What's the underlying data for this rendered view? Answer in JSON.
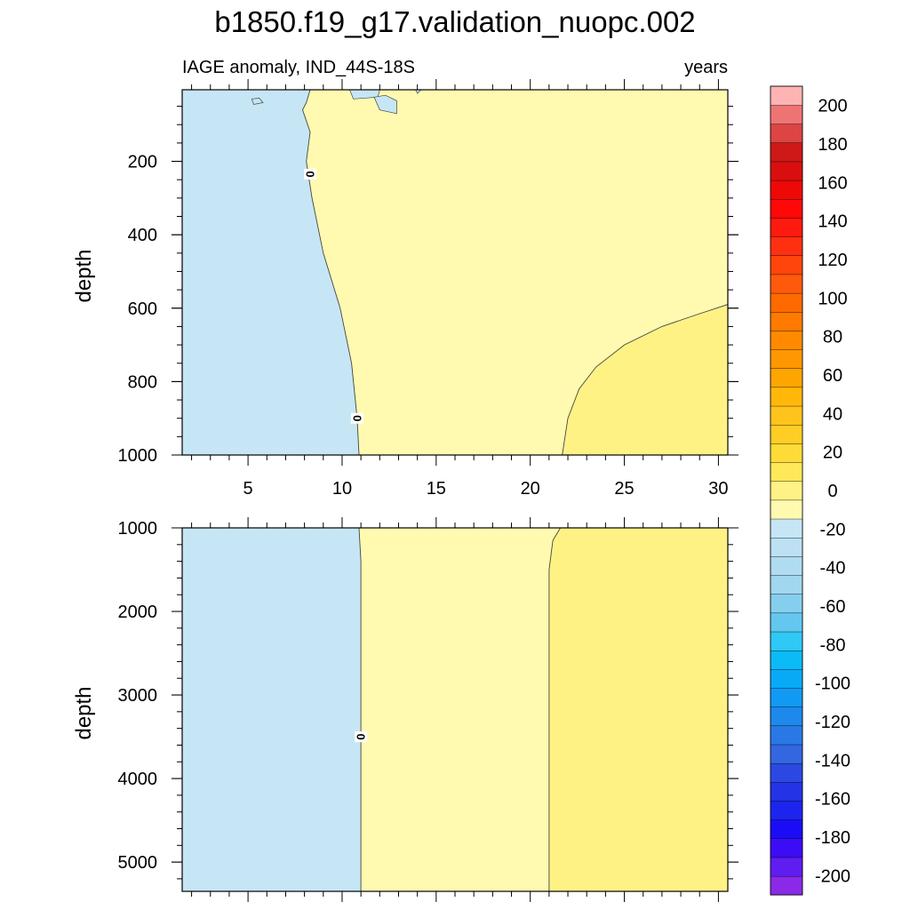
{
  "title": "b1850.f19_g17.validation_nuopc.002",
  "subtitle_left": "IAGE anomaly, IND_44S-18S",
  "subtitle_right": "years",
  "chart_data": [
    {
      "type": "heatmap",
      "panel": "upper",
      "ylabel": "depth",
      "xlim": [
        1.5,
        30.5
      ],
      "ylim": [
        1000,
        5
      ],
      "y_reversed": true,
      "xticks": [
        5,
        10,
        15,
        20,
        25,
        30
      ],
      "xtick_labels": [
        "5",
        "10",
        "15",
        "20",
        "25",
        "30"
      ],
      "yticks": [
        200,
        400,
        600,
        800,
        1000
      ],
      "ytick_labels": [
        "200",
        "400",
        "600",
        "800",
        "1000"
      ],
      "regions": [
        {
          "range": "-10 to 0",
          "color": "#c6e6f5",
          "description": "west of 0 contour"
        },
        {
          "range": "0 to 10",
          "color": "#fffab0",
          "description": "central"
        },
        {
          "range": "10 to 20",
          "color": "#fff285",
          "description": "south-east corner below ~600 m"
        }
      ],
      "contour_lines": [
        {
          "level": 0,
          "label": "0",
          "points": [
            [
              8.3,
              5
            ],
            [
              8.1,
              40
            ],
            [
              7.9,
              60
            ],
            [
              8.3,
              120
            ],
            [
              8.1,
              200
            ],
            [
              8.4,
              300
            ],
            [
              9.0,
              450
            ],
            [
              9.9,
              600
            ],
            [
              10.5,
              750
            ],
            [
              10.8,
              900
            ],
            [
              10.9,
              1000
            ]
          ]
        },
        {
          "level": 10,
          "label": "",
          "points": [
            [
              21.7,
              1000
            ],
            [
              22.0,
              900
            ],
            [
              22.6,
              820
            ],
            [
              23.5,
              760
            ],
            [
              25.0,
              700
            ],
            [
              27.0,
              650
            ],
            [
              29.0,
              615
            ],
            [
              30.5,
              590
            ]
          ]
        }
      ],
      "contour_labels": [
        {
          "text": "0",
          "x": 8.3,
          "y": 235
        },
        {
          "text": "0",
          "x": 10.8,
          "y": 900
        }
      ],
      "islands": [
        {
          "color": "#c6e6f5",
          "points": [
            [
              5.2,
              30
            ],
            [
              5.6,
              28
            ],
            [
              5.8,
              40
            ],
            [
              5.3,
              45
            ]
          ]
        },
        {
          "color": "#c6e6f5",
          "points": [
            [
              10.4,
              5
            ],
            [
              12.0,
              5
            ],
            [
              11.9,
              25
            ],
            [
              10.6,
              30
            ]
          ]
        },
        {
          "color": "#c6e6f5",
          "points": [
            [
              11.7,
              25
            ],
            [
              12.3,
              20
            ],
            [
              12.9,
              35
            ],
            [
              12.9,
              70
            ],
            [
              12.0,
              60
            ]
          ]
        },
        {
          "color": "#c6e6f5",
          "points": [
            [
              13.9,
              5
            ],
            [
              14.2,
              5
            ],
            [
              14.0,
              15
            ]
          ]
        }
      ]
    },
    {
      "type": "heatmap",
      "panel": "lower",
      "ylabel": "depth",
      "xlim": [
        1.5,
        30.5
      ],
      "ylim": [
        1000,
        5350
      ],
      "y_reversed": true,
      "xticks": [
        5,
        10,
        15,
        20,
        25,
        30
      ],
      "xtick_labels": [],
      "yticks": [
        1000,
        2000,
        3000,
        4000,
        5000
      ],
      "ytick_labels": [
        "1000",
        "2000",
        "3000",
        "4000",
        "5000"
      ],
      "regions": [
        {
          "range": "-10 to 0",
          "color": "#c6e6f5",
          "description": "west"
        },
        {
          "range": "0 to 10",
          "color": "#fffab0",
          "description": "central"
        },
        {
          "range": "10 to 20",
          "color": "#fff285",
          "description": "east"
        }
      ],
      "contour_lines": [
        {
          "level": 0,
          "label": "0",
          "points": [
            [
              10.9,
              1000
            ],
            [
              11.0,
              1400
            ],
            [
              11.0,
              2500
            ],
            [
              11.0,
              3700
            ],
            [
              11.0,
              5350
            ]
          ]
        },
        {
          "level": 10,
          "label": "",
          "points": [
            [
              21.6,
              1000
            ],
            [
              21.2,
              1150
            ],
            [
              21.0,
              1500
            ],
            [
              21.0,
              2500
            ],
            [
              21.0,
              4000
            ],
            [
              21.0,
              5350
            ]
          ]
        }
      ],
      "contour_labels": [
        {
          "text": "0",
          "x": 11.0,
          "y": 3500
        }
      ]
    }
  ],
  "colorbar": {
    "levels": [
      -210,
      -200,
      -190,
      -180,
      -170,
      -160,
      -150,
      -140,
      -130,
      -120,
      -110,
      -100,
      -90,
      -80,
      -70,
      -60,
      -50,
      -40,
      -30,
      -20,
      -10,
      0,
      10,
      20,
      30,
      40,
      50,
      60,
      70,
      80,
      90,
      100,
      110,
      120,
      130,
      140,
      150,
      160,
      170,
      180,
      190,
      200,
      210
    ],
    "labels": [
      "-200",
      "-180",
      "-160",
      "-140",
      "-120",
      "-100",
      "-80",
      "-60",
      "-40",
      "-20",
      "0",
      "20",
      "40",
      "60",
      "80",
      "100",
      "120",
      "140",
      "160",
      "180",
      "200"
    ],
    "label_values": [
      -200,
      -180,
      -160,
      -140,
      -120,
      -100,
      -80,
      -60,
      -40,
      -20,
      0,
      20,
      40,
      60,
      80,
      100,
      120,
      140,
      160,
      180,
      200
    ],
    "colors_bottom_to_top": [
      "#8a2ae8",
      "#5f1df0",
      "#3d0cf6",
      "#1b0cf6",
      "#1c25ee",
      "#2433e6",
      "#2b49e2",
      "#3366e0",
      "#2a78e6",
      "#1e88ed",
      "#119af3",
      "#08aaf7",
      "#0bbbf6",
      "#30c8f5",
      "#63c7f0",
      "#85cfee",
      "#a1d7ef",
      "#b0dcf1",
      "#bde1f3",
      "#c6e6f5",
      "#fffab0",
      "#fff285",
      "#ffe85a",
      "#ffdb38",
      "#ffce24",
      "#ffc41c",
      "#ffb80a",
      "#ffa500",
      "#ff9800",
      "#ff8a00",
      "#ff7a00",
      "#ff6a00",
      "#ff5a0b",
      "#ff450c",
      "#ff3010",
      "#ff1a10",
      "#ff0808",
      "#ee0808",
      "#d90f0f",
      "#cf1818",
      "#dd4444",
      "#ee7474",
      "#ffb4b4"
    ]
  }
}
